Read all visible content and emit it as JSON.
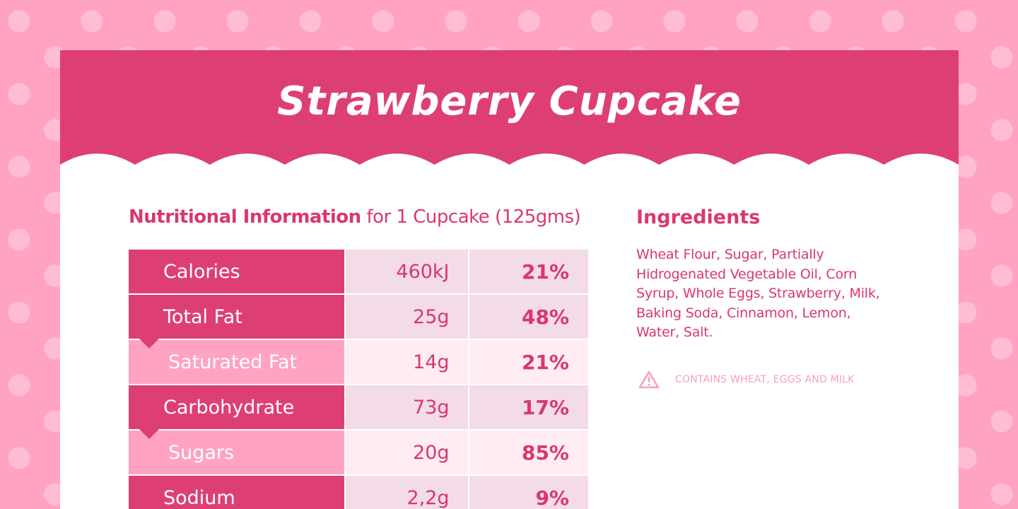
{
  "title": "Strawberry Cupcake",
  "nutrition": {
    "heading_bold": "Nutritional Information",
    "heading_rest": "for 1 Cupcake (125gms)",
    "rows": [
      {
        "name": "Calories",
        "amount": "460kJ",
        "percent": "21%",
        "type": "main"
      },
      {
        "name": "Total Fat",
        "amount": "25g",
        "percent": "48%",
        "type": "main"
      },
      {
        "name": "Saturated Fat",
        "amount": "14g",
        "percent": "21%",
        "type": "sub"
      },
      {
        "name": "Carbohydrate",
        "amount": "73g",
        "percent": "17%",
        "type": "main"
      },
      {
        "name": "Sugars",
        "amount": "20g",
        "percent": "85%",
        "type": "sub"
      },
      {
        "name": "Sodium",
        "amount": "2,2g",
        "percent": "9%",
        "type": "main"
      }
    ]
  },
  "ingredients": {
    "heading": "Ingredients",
    "text": "Wheat Flour, Sugar, Partially Hidrogenated Vegetable Oil, Corn Syrup, Whole Eggs, Strawberry, Milk, Baking Soda, Cinnamon, Lemon, Water, Salt.",
    "warning_icon": "warning-triangle-icon",
    "warning": "CONTAINS WHEAT, EGGS AND MILK"
  },
  "colors": {
    "background": "#ffa3c1",
    "banner": "#dd3f75",
    "accent_text": "#d9376f",
    "sub_row": "#ffa3c1",
    "amount_cell": "#f3dce7"
  }
}
